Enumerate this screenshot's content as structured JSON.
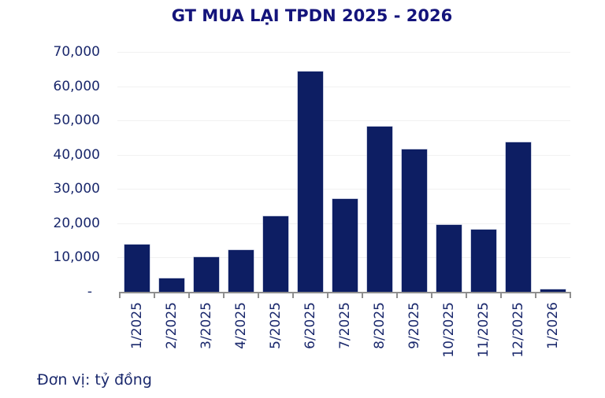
{
  "chart_data": {
    "type": "bar",
    "title": "GT MUA LẠI TPDN 2025 - 2026",
    "unit_note": "Đơn vị: tỷ đồng",
    "categories": [
      "1/2025",
      "2/2025",
      "3/2025",
      "4/2025",
      "5/2025",
      "6/2025",
      "7/2025",
      "8/2025",
      "9/2025",
      "10/2025",
      "11/2025",
      "12/2025",
      "1/2026"
    ],
    "values": [
      13700,
      4000,
      10100,
      12200,
      22000,
      64200,
      27100,
      48100,
      41600,
      19600,
      18100,
      43600,
      600
    ],
    "xlabel": "",
    "ylabel": "",
    "ylim": [
      0,
      70000
    ],
    "ytick_step": 10000,
    "ytick_labels": [
      "-",
      "10,000",
      "20,000",
      "30,000",
      "40,000",
      "50,000",
      "60,000",
      "70,000"
    ],
    "grid": true,
    "legend_position": "none",
    "colors": {
      "bar": "#0d1e63",
      "bar_edge": "#9aa3c6",
      "title_text": "#14147b",
      "axis_text": "#1a286c",
      "gridline": "#f1f1f1",
      "axis_line": "#8f8f8f",
      "background": "#ffffff"
    }
  }
}
